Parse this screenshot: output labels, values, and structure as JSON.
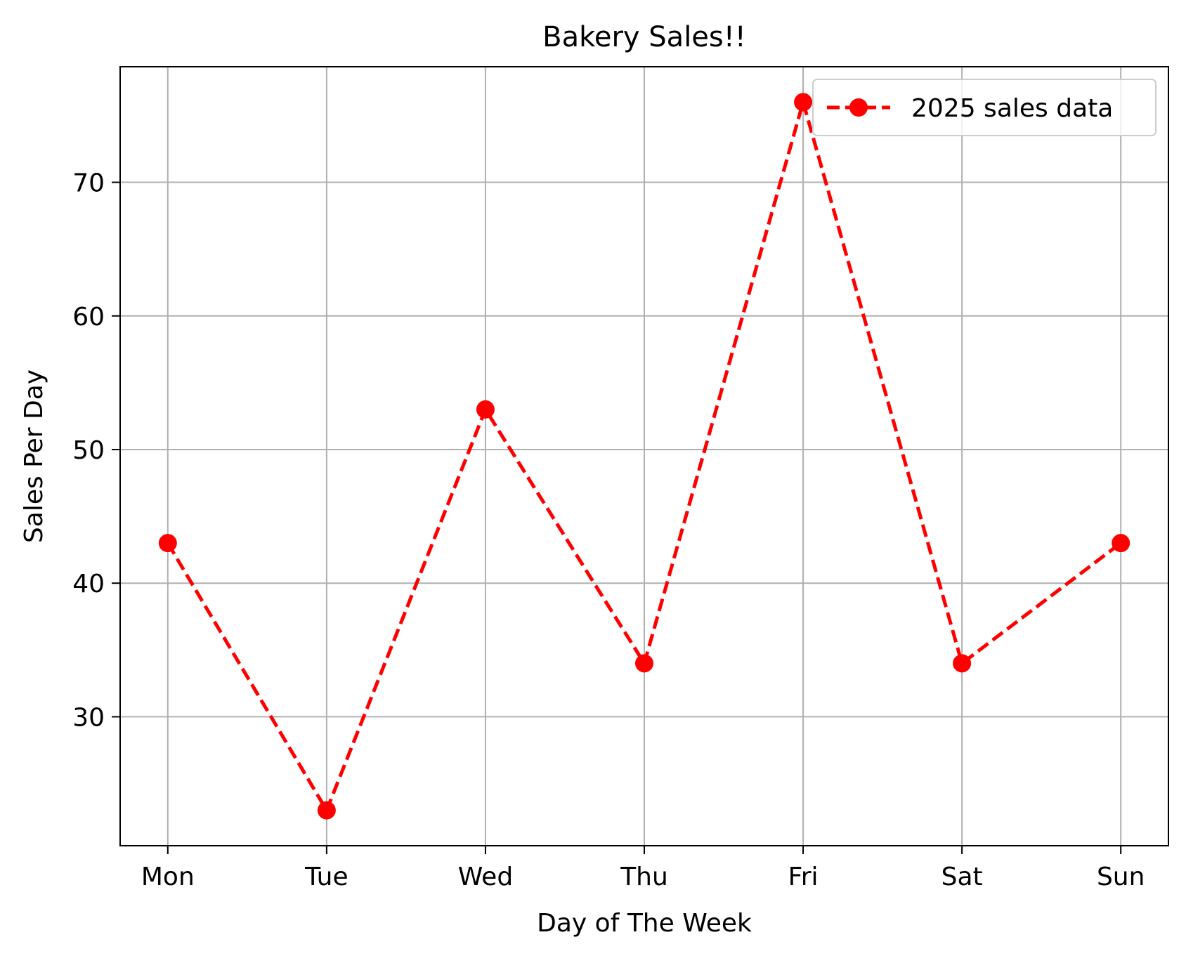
{
  "chart_data": {
    "type": "line",
    "title": "Bakery Sales!!",
    "xlabel": "Day of The Week",
    "ylabel": "Sales Per Day",
    "categories": [
      "Mon",
      "Tue",
      "Wed",
      "Thu",
      "Fri",
      "Sat",
      "Sun"
    ],
    "series": [
      {
        "name": "2025 sales data",
        "values": [
          43,
          23,
          53,
          34,
          76,
          34,
          43
        ],
        "color": "#ff0000",
        "line_style": "dashed",
        "marker": "circle"
      }
    ],
    "ylim": [
      20.35,
      78.65
    ],
    "yticks": [
      30,
      40,
      50,
      60,
      70
    ],
    "grid": true,
    "grid_color": "#b0b0b0",
    "legend_position": "upper right"
  }
}
